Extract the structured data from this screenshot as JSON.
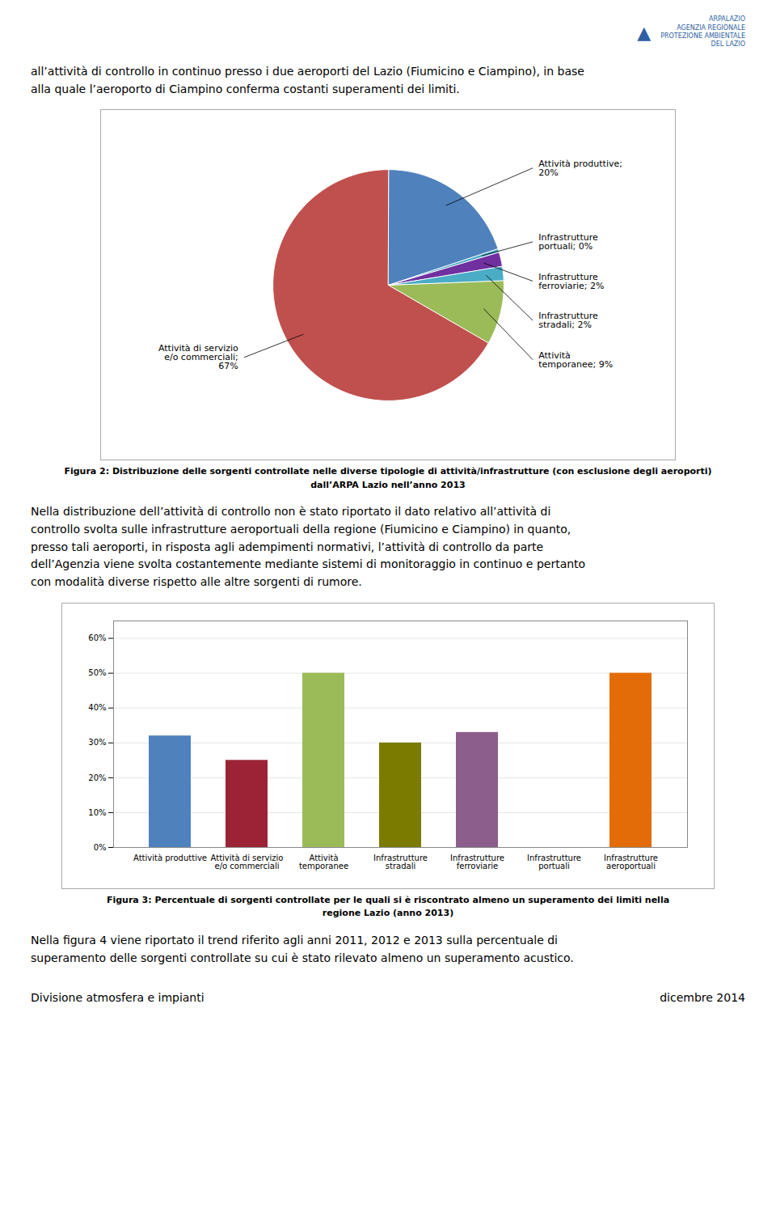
{
  "chart_data": [
    {
      "type": "pie",
      "title": "Figura 2: Distribuzione delle sorgenti controllate nelle diverse tipologie di attività/infrastrutture (con esclusione degli aeroporti)\ndall’ARPA Lazio nell’anno 2013",
      "categories": [
        "Attività produttive;\n20%",
        "Infrastrutture\nportuali; 0%",
        "Infrastrutture\nferroviarie; 2%",
        "Infrastrutture\nstradali; 2%",
        "Attività\ntemporanee; 9%",
        "Attività di servizio\ne/o commerciali;\n67%"
      ],
      "values": [
        20,
        0.5,
        2,
        2,
        9,
        67
      ],
      "colors": [
        "#4f81bd",
        "#4bacc6",
        "#7030a0",
        "#4bacc6",
        "#9bbb59",
        "#c0504d"
      ],
      "annotations": [
        "ARPALAZIO\nAGENZIA REGIONALE\nPROTEZIONE AMBIENTALE\nDEL LAZIO",
        "▲",
        "all’attività di controllo in continuo presso i due aeroporti del Lazio (Fiumicino e Ciampino), in base\nalla quale l’aeroporto di Ciampino conferma costanti superamenti dei limiti.",
        "Nella distribuzione dell’attività di controllo non è stato riportato il dato relativo all’attività di\ncontrollo svolta sulle infrastrutture aeroportuali della regione (Fiumicino e Ciampino) in quanto,\npresso tali aeroporti, in risposta agli adempimenti normativi, l’attività di controllo da parte\ndell’Agenzia viene svolta costantemente mediante sistemi di monitoraggio in continuo e pertanto\ncon modalità diverse rispetto alle altre sorgenti di rumore."
      ]
    },
    {
      "type": "bar",
      "title": "Figura 3: Percentuale di sorgenti controllate per le quali si è riscontrato almeno un superamento dei limiti nella\nregione Lazio (anno 2013)",
      "categories": [
        "Attività produttive",
        "Attività di servizio\ne/o commerciali",
        "Attività\ntemporanee",
        "Infrastrutture\nstradali",
        "Infrastrutture\nferroviarie",
        "Infrastrutture\nportuali",
        "Infrastrutture\naeroportuali"
      ],
      "values": [
        32,
        25,
        50,
        30,
        33,
        0,
        50
      ],
      "colors": [
        "#4f81bd",
        "#9b2335",
        "#9bbb59",
        "#7b7b00",
        "#8b5e8b",
        "#808080",
        "#e36c09"
      ],
      "ylim": [
        0,
        65
      ],
      "yticks": [
        {
          "value": 0,
          "label": "0%"
        },
        {
          "value": 10,
          "label": "10%"
        },
        {
          "value": 20,
          "label": "20%"
        },
        {
          "value": 30,
          "label": "30%"
        },
        {
          "value": 40,
          "label": "40%"
        },
        {
          "value": 50,
          "label": "50%"
        },
        {
          "value": 60,
          "label": "60%"
        }
      ],
      "grid": true,
      "annotations": [
        "Nella figura 4 viene riportato il trend riferito agli anni 2011, 2012 e 2013 sulla percentuale di\nsuperamento delle sorgenti controllate su cui è stato rilevato almeno un superamento acustico.",
        "Divisione atmosfera e impianti",
        "dicembre 2014"
      ]
    }
  ]
}
